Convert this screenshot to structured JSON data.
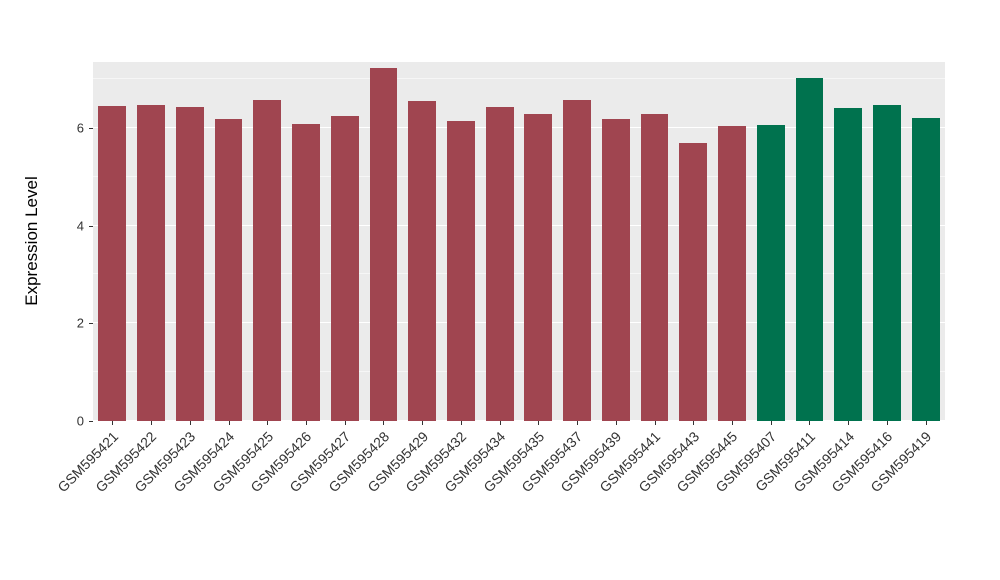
{
  "chart_data": {
    "type": "bar",
    "title": "",
    "xlabel": "",
    "ylabel": "Expression Level",
    "ylim": [
      0,
      7.35
    ],
    "yticks": [
      0,
      2,
      4,
      6
    ],
    "minor_gridlines": [
      1,
      3,
      5,
      7
    ],
    "grid": true,
    "legend_position": "none",
    "panel_background": "#EBEBEB",
    "gridline_color": "#FFFFFF",
    "tick_label_color": "#333333",
    "axis_title_color": "#000000",
    "group_colors": {
      "maroon": "#A04550",
      "green": "#00724E"
    },
    "categories": [
      "GSM595421",
      "GSM595422",
      "GSM595423",
      "GSM595424",
      "GSM595425",
      "GSM595426",
      "GSM595427",
      "GSM595428",
      "GSM595429",
      "GSM595432",
      "GSM595434",
      "GSM595435",
      "GSM595437",
      "GSM595439",
      "GSM595441",
      "GSM595443",
      "GSM595445",
      "GSM595407",
      "GSM595411",
      "GSM595414",
      "GSM595416",
      "GSM595419"
    ],
    "values": [
      6.45,
      6.46,
      6.42,
      6.18,
      6.57,
      6.08,
      6.24,
      7.22,
      6.56,
      6.15,
      6.42,
      6.28,
      6.57,
      6.18,
      6.28,
      5.7,
      6.04,
      6.06,
      7.02,
      6.4,
      6.47,
      6.21
    ],
    "bar_colors": [
      "#A04550",
      "#A04550",
      "#A04550",
      "#A04550",
      "#A04550",
      "#A04550",
      "#A04550",
      "#A04550",
      "#A04550",
      "#A04550",
      "#A04550",
      "#A04550",
      "#A04550",
      "#A04550",
      "#A04550",
      "#A04550",
      "#A04550",
      "#00724E",
      "#00724E",
      "#00724E",
      "#00724E",
      "#00724E"
    ]
  }
}
